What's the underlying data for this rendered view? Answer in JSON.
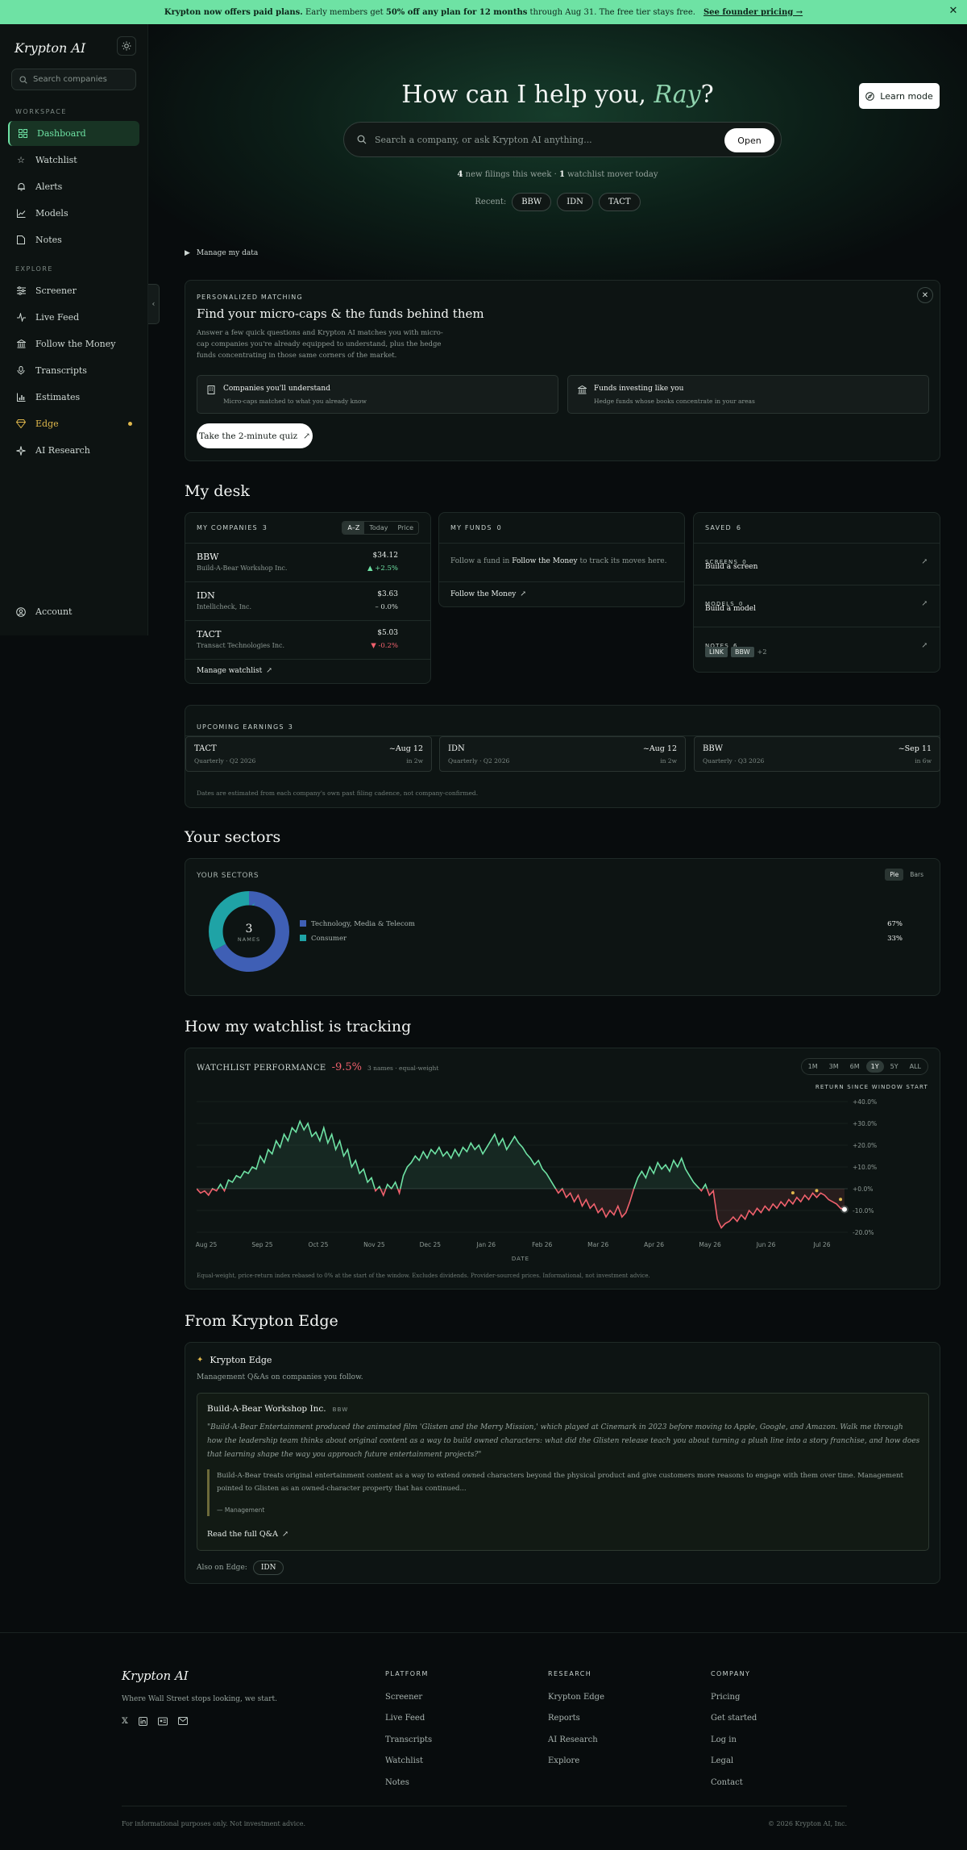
{
  "banner": {
    "lead": "Krypton now offers paid plans.",
    "text1": "Early members get",
    "bold": "50% off any plan for 12 months",
    "text2": "through Aug 31. The free tier stays free.",
    "cta": "See founder pricing →"
  },
  "sidebar": {
    "logo": "Krypton AI",
    "search_placeholder": "Search companies",
    "workspace_label": "WORKSPACE",
    "explore_label": "EXPLORE",
    "workspace": [
      {
        "label": "Dashboard",
        "icon": "dashboard-icon"
      },
      {
        "label": "Watchlist",
        "icon": "star-icon"
      },
      {
        "label": "Alerts",
        "icon": "bell-icon"
      },
      {
        "label": "Models",
        "icon": "chart-line-icon"
      },
      {
        "label": "Notes",
        "icon": "note-icon"
      }
    ],
    "explore": [
      {
        "label": "Screener",
        "icon": "sliders-icon"
      },
      {
        "label": "Live Feed",
        "icon": "activity-icon"
      },
      {
        "label": "Follow the Money",
        "icon": "bank-icon"
      },
      {
        "label": "Transcripts",
        "icon": "mic-icon"
      },
      {
        "label": "Estimates",
        "icon": "bar-chart-icon"
      },
      {
        "label": "Edge",
        "icon": "gem-icon"
      },
      {
        "label": "AI Research",
        "icon": "sparkle-icon"
      }
    ],
    "account": "Account"
  },
  "hero": {
    "greeting": "How can I help you,",
    "name": "Ray",
    "punct": "?",
    "search_placeholder": "Search a company, or ask Krypton AI anything...",
    "open_label": "Open",
    "filings_count": "4",
    "filings_text": "new filings this week ·",
    "movers_count": "1",
    "movers_text": "watchlist mover today",
    "recent_label": "Recent:",
    "recent": [
      "BBW",
      "IDN",
      "TACT"
    ],
    "learn_mode": "Learn mode"
  },
  "manage_data": "Manage my data",
  "matching": {
    "kicker": "PERSONALIZED MATCHING",
    "title": "Find your micro-caps & the funds behind them",
    "desc": "Answer a few quick questions and Krypton AI matches you with micro-cap companies you're already equipped to understand, plus the hedge funds concentrating in those same corners of the market.",
    "feature1_title": "Companies you'll understand",
    "feature1_sub": "Micro-caps matched to what you already know",
    "feature2_title": "Funds investing like you",
    "feature2_sub": "Hedge funds whose books concentrate in your areas",
    "quiz": "Take the 2-minute quiz"
  },
  "desk": {
    "title": "My desk",
    "companies_label": "MY COMPANIES",
    "companies_count": "3",
    "sort": [
      "A–Z",
      "Today",
      "Price"
    ],
    "companies": [
      {
        "ticker": "BBW",
        "name": "Build-A-Bear Workshop Inc.",
        "price": "$34.12",
        "change": "▲ +2.5%",
        "dir": "up"
      },
      {
        "ticker": "IDN",
        "name": "Intellicheck, Inc.",
        "price": "$3.63",
        "change": "– 0.0%",
        "dir": "flat"
      },
      {
        "ticker": "TACT",
        "name": "Transact Technologies Inc.",
        "price": "$5.03",
        "change": "▼ -0.2%",
        "dir": "dn"
      }
    ],
    "manage_watchlist": "Manage watchlist",
    "funds_label": "MY FUNDS",
    "funds_count": "0",
    "funds_text1": "Follow a fund in",
    "funds_bold": "Follow the Money",
    "funds_text2": "to track its moves here.",
    "follow_money": "Follow the Money",
    "saved_label": "SAVED",
    "saved_count": "6",
    "screens_label": "SCREENS",
    "screens_count": "0",
    "screens_cta": "Build a screen",
    "models_label": "MODELS",
    "models_count": "0",
    "models_cta": "Build a model",
    "notes_label": "NOTES",
    "notes_count": "6",
    "note_tags": [
      "LINK",
      "BBW"
    ],
    "notes_more": "+2"
  },
  "earnings": {
    "label": "UPCOMING EARNINGS",
    "count": "3",
    "items": [
      {
        "ticker": "TACT",
        "quarter": "Quarterly · Q2 2026",
        "date": "~Aug 12",
        "in": "in 2w"
      },
      {
        "ticker": "IDN",
        "quarter": "Quarterly · Q2 2026",
        "date": "~Aug 12",
        "in": "in 2w"
      },
      {
        "ticker": "BBW",
        "quarter": "Quarterly · Q3 2026",
        "date": "~Sep 11",
        "in": "in 6w"
      }
    ],
    "note": "Dates are estimated from each company's own past filing cadence, not company-confirmed."
  },
  "sectors": {
    "title": "Your sectors",
    "label": "YOUR SECTORS",
    "toggle": [
      "Pie",
      "Bars"
    ],
    "center_count": "3",
    "center_label": "NAMES",
    "items": [
      {
        "name": "Technology, Media & Telecom",
        "pct": "67%",
        "value": 67,
        "color": "#3f5fb5"
      },
      {
        "name": "Consumer",
        "pct": "33%",
        "value": 33,
        "color": "#1fa3a6"
      }
    ]
  },
  "tracking": {
    "title": "How my watchlist is tracking",
    "label": "WATCHLIST PERFORMANCE",
    "return": "-9.5%",
    "meta": "3 names · equal-weight",
    "ranges": [
      "1M",
      "3M",
      "6M",
      "1Y",
      "5Y",
      "ALL"
    ],
    "active_range": "1Y",
    "legend_caption": "RETURN SINCE WINDOW START",
    "note": "Equal-weight, price-return index rebased to 0% at the start of the window. Excludes dividends. Provider-sourced prices. Informational, not investment advice."
  },
  "chart_data": {
    "type": "line",
    "xlabel": "DATE",
    "ylabel": "",
    "x_ticks": [
      "Aug 25",
      "Sep 25",
      "Oct 25",
      "Nov 25",
      "Dec 25",
      "Jan 26",
      "Feb 26",
      "Mar 26",
      "Apr 26",
      "May 26",
      "Jun 26",
      "Jul 26"
    ],
    "y_ticks": [
      "+40.0%",
      "+30.0%",
      "+20.0%",
      "+10.0%",
      "+0.0%",
      "-10.0%",
      "-20.0%"
    ],
    "ylim": [
      -20,
      40
    ],
    "colors": {
      "positive": "#6ee2a4",
      "negative": "#f0616d"
    },
    "series": [
      {
        "values": [
          0,
          -2,
          -1,
          -3,
          0,
          -1,
          2,
          -1,
          4,
          3,
          6,
          5,
          8,
          7,
          10,
          9,
          15,
          12,
          18,
          16,
          22,
          19,
          25,
          22,
          28,
          26,
          31,
          27,
          30,
          24,
          26,
          22,
          28,
          21,
          25,
          18,
          22,
          15,
          18,
          10,
          13,
          7,
          9,
          3,
          5,
          -1,
          1,
          -3,
          2,
          0,
          3,
          -2,
          6,
          10,
          12,
          15,
          13,
          17,
          14,
          18,
          16,
          19,
          15,
          17,
          14,
          18,
          15,
          19,
          17,
          21,
          18,
          20,
          16,
          19,
          22,
          25,
          20,
          23,
          18,
          21,
          24,
          21,
          19,
          16,
          14,
          11,
          13,
          9,
          7,
          4,
          1,
          -2,
          0,
          -4,
          -2,
          -6,
          -3,
          -8,
          -5,
          -9,
          -7,
          -11,
          -9,
          -13,
          -10,
          -12,
          -8,
          -13,
          -11,
          -6,
          0,
          5,
          8,
          5,
          10,
          7,
          12,
          9,
          11,
          8,
          13,
          10,
          14,
          9,
          6,
          3,
          1,
          -1,
          2,
          -3,
          -1,
          -14,
          -18,
          -16,
          -15,
          -13,
          -15,
          -12,
          -14,
          -10,
          -12,
          -9,
          -11,
          -8,
          -10,
          -7,
          -9,
          -6,
          -8,
          -5,
          -7,
          -4,
          -6,
          -3,
          -5,
          -2,
          -4,
          -2,
          -3,
          -5,
          -6,
          -7,
          -9,
          -9.5
        ]
      }
    ],
    "markers": [
      {
        "index": 150,
        "value": -3
      },
      {
        "index": 156,
        "value": -2
      },
      {
        "index": 162,
        "value": -6
      }
    ]
  },
  "edge": {
    "title": "From Krypton Edge",
    "brand": "Krypton Edge",
    "sub": "Management Q&As on companies you follow.",
    "company": "Build-A-Bear Workshop Inc.",
    "ticker": "BBW",
    "question": "\"Build-A-Bear Entertainment produced the animated film 'Glisten and the Merry Mission,' which played at Cinemark in 2023 before moving to Apple, Google, and Amazon. Walk me through how the leadership team thinks about original content as a way to build owned characters: what did the Glisten release teach you about turning a plush line into a story franchise, and how does that learning shape the way you approach future entertainment projects?\"",
    "answer": "Build-A-Bear treats original entertainment content as a way to extend owned characters beyond the physical product and give customers more reasons to engage with them over time. Management pointed to Glisten as an owned-character property that has continued...",
    "attribution": "— Management",
    "read_more": "Read the full Q&A",
    "also_label": "Also on Edge:",
    "also": "IDN"
  },
  "footer": {
    "logo": "Krypton AI",
    "tagline": "Where Wall Street stops looking, we start.",
    "platform_title": "PLATFORM",
    "platform": [
      "Screener",
      "Live Feed",
      "Transcripts",
      "Watchlist",
      "Notes"
    ],
    "research_title": "RESEARCH",
    "research": [
      "Krypton Edge",
      "Reports",
      "AI Research",
      "Explore"
    ],
    "company_title": "COMPANY",
    "company": [
      "Pricing",
      "Get started",
      "Log in",
      "Legal",
      "Contact"
    ],
    "disclaimer": "For informational purposes only. Not investment advice.",
    "copyright": "© 2026 Krypton AI, Inc."
  }
}
